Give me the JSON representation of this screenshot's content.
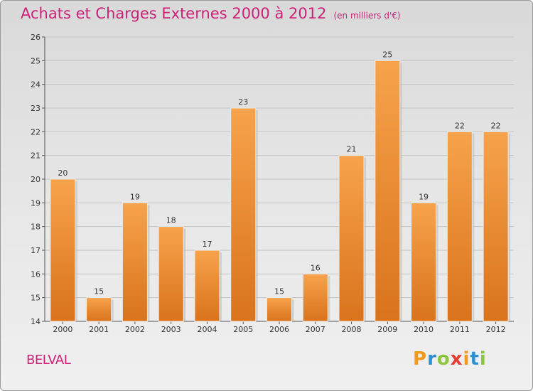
{
  "header": {
    "title": "Achats et Charges Externes 2000 à 2012",
    "unit": "(en milliers d'€)"
  },
  "footer": {
    "town": "BELVAL",
    "logo": "Proxiti"
  },
  "colors": {
    "title": "#cc2277",
    "bar_top": "#f7a34c",
    "bar_bottom": "#d9731c"
  },
  "chart_data": {
    "type": "bar",
    "title": "Achats et Charges Externes 2000 à 2012",
    "xlabel": "",
    "ylabel": "",
    "categories": [
      "2000",
      "2001",
      "2002",
      "2003",
      "2004",
      "2005",
      "2006",
      "2007",
      "2008",
      "2009",
      "2010",
      "2011",
      "2012"
    ],
    "values": [
      20,
      15,
      19,
      18,
      17,
      23,
      15,
      16,
      21,
      25,
      19,
      22,
      22
    ],
    "ylim": [
      14,
      26
    ],
    "yticks": [
      14,
      15,
      16,
      17,
      18,
      19,
      20,
      21,
      22,
      23,
      24,
      25,
      26
    ],
    "grid": true,
    "legend": "none"
  }
}
